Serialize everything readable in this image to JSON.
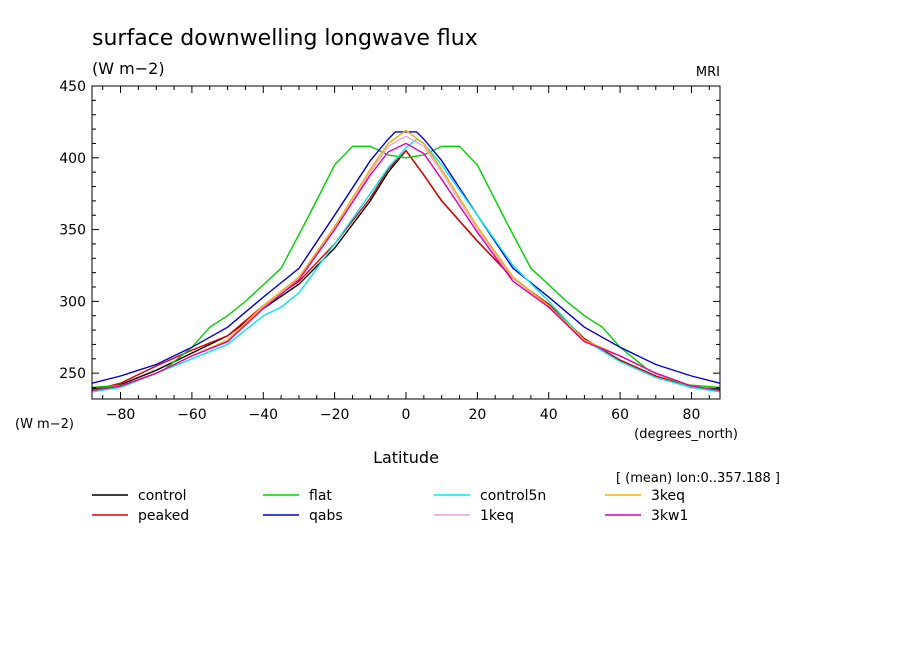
{
  "chart_data": {
    "type": "line",
    "title": "surface downwelling longwave flux",
    "units_top": "(W m−2)",
    "units_left": "(W m−2)",
    "model": "MRI",
    "xlabel": "Latitude",
    "xunits": "(degrees_north)",
    "mean_note": "[ (mean) lon:0..357.188 ]",
    "xlim": [
      -88,
      88
    ],
    "ylim": [
      232,
      450
    ],
    "x_ticks": [
      -80,
      -60,
      -40,
      -20,
      0,
      20,
      40,
      60,
      80
    ],
    "x_tick_labels": [
      "−80",
      "−60",
      "−40",
      "−20",
      "0",
      "20",
      "40",
      "60",
      "80"
    ],
    "y_ticks": [
      250,
      300,
      350,
      400,
      450
    ],
    "y_tick_labels": [
      "250",
      "300",
      "350",
      "400",
      "450"
    ],
    "legend_position": "bottom",
    "series": [
      {
        "name": "control",
        "color": "#000000",
        "x": [
          -88,
          -80,
          -70,
          -60,
          -50,
          -40,
          -30,
          -20,
          -10,
          -5,
          0,
          5,
          10,
          20,
          30,
          40,
          50,
          60,
          70,
          80,
          88
        ],
        "y": [
          239,
          242,
          252,
          264,
          276,
          295,
          312,
          337,
          370,
          390,
          405,
          388,
          370,
          342,
          316,
          298,
          274,
          259,
          248,
          240,
          239
        ]
      },
      {
        "name": "peaked",
        "color": "#e00000",
        "x": [
          -88,
          -80,
          -70,
          -60,
          -50,
          -40,
          -30,
          -20,
          -10,
          -5,
          0,
          5,
          10,
          20,
          30,
          40,
          50,
          60,
          70,
          80,
          88
        ],
        "y": [
          238,
          243,
          255,
          266,
          276,
          297,
          314,
          340,
          372,
          392,
          405,
          388,
          370,
          342,
          316,
          298,
          274,
          259,
          248,
          240,
          238
        ]
      },
      {
        "name": "flat",
        "color": "#00d000",
        "x": [
          -88,
          -78,
          -68,
          -60,
          -55,
          -50,
          -45,
          -35,
          -28,
          -20,
          -15,
          -10,
          -5,
          0,
          5,
          10,
          15,
          20,
          28,
          35,
          45,
          50,
          55,
          60,
          68,
          78,
          88
        ],
        "y": [
          240,
          242,
          252,
          268,
          282,
          290,
          300,
          323,
          356,
          395,
          408,
          408,
          402,
          400,
          402,
          408,
          408,
          395,
          356,
          323,
          300,
          290,
          282,
          268,
          252,
          242,
          240
        ]
      },
      {
        "name": "qabs",
        "color": "#0000d0",
        "x": [
          -88,
          -80,
          -70,
          -60,
          -50,
          -40,
          -30,
          -20,
          -10,
          -5,
          -3,
          3,
          5,
          10,
          20,
          30,
          40,
          50,
          60,
          70,
          80,
          88
        ],
        "y": [
          243,
          248,
          256,
          268,
          282,
          303,
          323,
          360,
          398,
          413,
          418,
          418,
          413,
          398,
          360,
          323,
          303,
          282,
          268,
          256,
          248,
          243
        ]
      },
      {
        "name": "control5n",
        "color": "#00e8f0",
        "x": [
          -88,
          -80,
          -70,
          -60,
          -50,
          -40,
          -35,
          -30,
          -20,
          -10,
          -5,
          0,
          3,
          5,
          10,
          20,
          30,
          40,
          50,
          60,
          70,
          80,
          88
        ],
        "y": [
          237,
          240,
          250,
          260,
          270,
          290,
          296,
          306,
          340,
          375,
          393,
          407,
          413,
          410,
          395,
          360,
          325,
          300,
          273,
          258,
          247,
          240,
          237
        ]
      },
      {
        "name": "1keq",
        "color": "#f0a0e0",
        "x": [
          -88,
          -80,
          -70,
          -60,
          -50,
          -40,
          -30,
          -20,
          -10,
          -5,
          0,
          5,
          10,
          20,
          30,
          40,
          50,
          60,
          70,
          80,
          88
        ],
        "y": [
          238,
          241,
          250,
          262,
          272,
          296,
          316,
          350,
          390,
          408,
          415,
          408,
          390,
          350,
          316,
          296,
          272,
          262,
          250,
          241,
          238
        ]
      },
      {
        "name": "3keq",
        "color": "#f0b000",
        "x": [
          -88,
          -80,
          -70,
          -60,
          -50,
          -40,
          -30,
          -20,
          -10,
          -5,
          0,
          5,
          10,
          20,
          30,
          40,
          50,
          60,
          70,
          80,
          88
        ],
        "y": [
          238,
          241,
          250,
          262,
          273,
          297,
          317,
          352,
          392,
          410,
          419,
          410,
          392,
          352,
          317,
          297,
          273,
          262,
          250,
          241,
          238
        ]
      },
      {
        "name": "3kw1",
        "color": "#e000b0",
        "x": [
          -88,
          -80,
          -70,
          -60,
          -50,
          -40,
          -30,
          -20,
          -10,
          -5,
          0,
          5,
          10,
          20,
          30,
          40,
          50,
          60,
          70,
          80,
          88
        ],
        "y": [
          238,
          241,
          250,
          262,
          272,
          295,
          315,
          350,
          388,
          404,
          410,
          403,
          385,
          348,
          314,
          296,
          272,
          262,
          250,
          241,
          238
        ]
      }
    ]
  }
}
